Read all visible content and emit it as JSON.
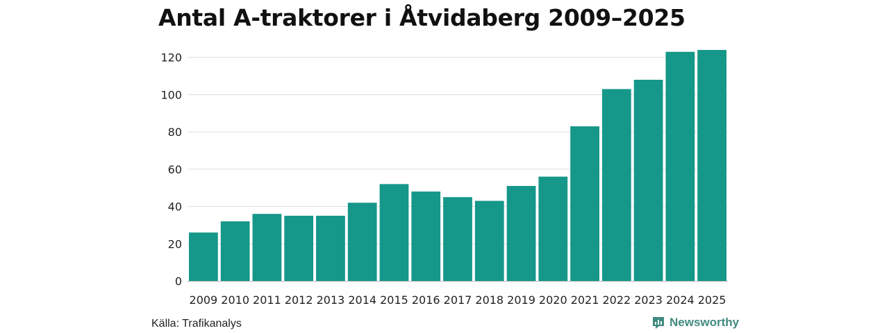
{
  "chart_data": {
    "type": "bar",
    "title": "Antal A-traktorer i Åtvidaberg 2009–2025",
    "xlabel": "",
    "ylabel": "",
    "categories": [
      "2009",
      "2010",
      "2011",
      "2012",
      "2013",
      "2014",
      "2015",
      "2016",
      "2017",
      "2018",
      "2019",
      "2020",
      "2021",
      "2022",
      "2023",
      "2024",
      "2025"
    ],
    "values": [
      26,
      32,
      36,
      35,
      35,
      42,
      52,
      48,
      45,
      43,
      51,
      56,
      83,
      103,
      108,
      123,
      124
    ],
    "ylim": [
      0,
      124
    ],
    "yticks": [
      0,
      20,
      40,
      60,
      80,
      100,
      120
    ],
    "grid": true,
    "bar_color": "#159789"
  },
  "footer": {
    "source": "Källa: Trafikanalys",
    "brand": "Newsworthy",
    "brand_icon": "newsworthy-logo-icon",
    "brand_color": "#3f8a7e"
  }
}
